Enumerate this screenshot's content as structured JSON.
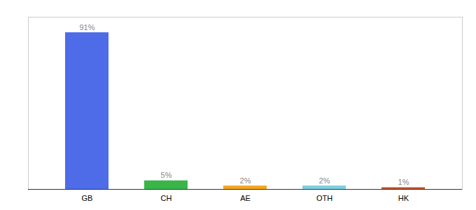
{
  "chart_data": {
    "type": "bar",
    "categories": [
      "GB",
      "CH",
      "AE",
      "OTH",
      "HK"
    ],
    "values": [
      91,
      5,
      2,
      2,
      1
    ],
    "value_labels": [
      "91%",
      "5%",
      "2%",
      "2%",
      "1%"
    ],
    "colors": [
      "#4e6be8",
      "#3ab54a",
      "#f5a623",
      "#7ecfe0",
      "#c0522b"
    ],
    "ylim": [
      0,
      100
    ],
    "grid": false,
    "data_labels": true,
    "tick_labels": "x"
  }
}
